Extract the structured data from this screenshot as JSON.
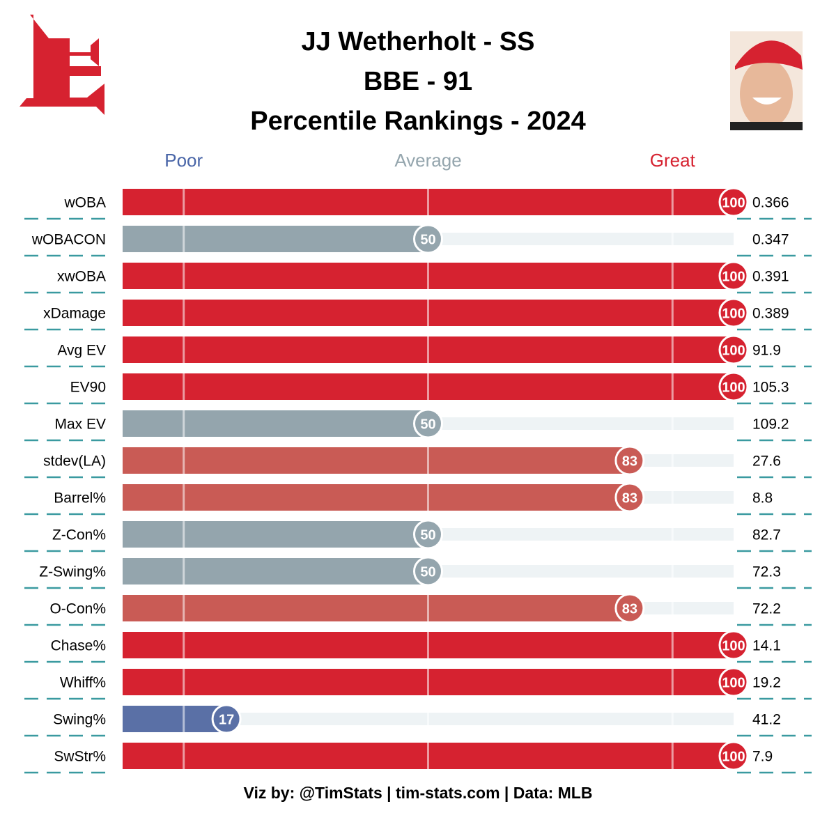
{
  "chart_data": {
    "type": "bar",
    "orientation": "horizontal",
    "title_lines": [
      "JJ Wetherholt - SS",
      "BBE - 91",
      "Percentile Rankings - 2024"
    ],
    "categories": [
      "wOBA",
      "wOBACON",
      "xwOBA",
      "xDamage",
      "Avg EV",
      "EV90",
      "Max EV",
      "stdev(LA)",
      "Barrel%",
      "Z-Con%",
      "Z-Swing%",
      "O-Con%",
      "Chase%",
      "Whiff%",
      "Swing%",
      "SwStr%"
    ],
    "values": [
      100,
      50,
      100,
      100,
      100,
      100,
      50,
      83,
      83,
      50,
      50,
      83,
      100,
      100,
      17,
      100
    ],
    "colors": [
      "#d62230",
      "#94a5ad",
      "#d62230",
      "#d62230",
      "#d62230",
      "#d62230",
      "#94a5ad",
      "#c95b55",
      "#c95b55",
      "#94a5ad",
      "#94a5ad",
      "#c95b55",
      "#d62230",
      "#d62230",
      "#5a70a6",
      "#d62230"
    ],
    "stat_values": [
      0.366,
      0.347,
      0.391,
      0.389,
      91.9,
      105.3,
      109.2,
      27.6,
      8.8,
      82.7,
      72.3,
      72.2,
      14.1,
      19.2,
      41.2,
      7.9
    ],
    "xlim": [
      0,
      100
    ],
    "xticks": [
      {
        "value": 10,
        "label": "Poor"
      },
      {
        "value": 50,
        "label": "Average"
      },
      {
        "value": 90,
        "label": "Great"
      }
    ],
    "xtick_colors": [
      "#4a66a8",
      "#94a5ad",
      "#d62230"
    ],
    "grid": true,
    "footer": "Viz by: @TimStats | tim-stats.com | Data: MLB"
  }
}
